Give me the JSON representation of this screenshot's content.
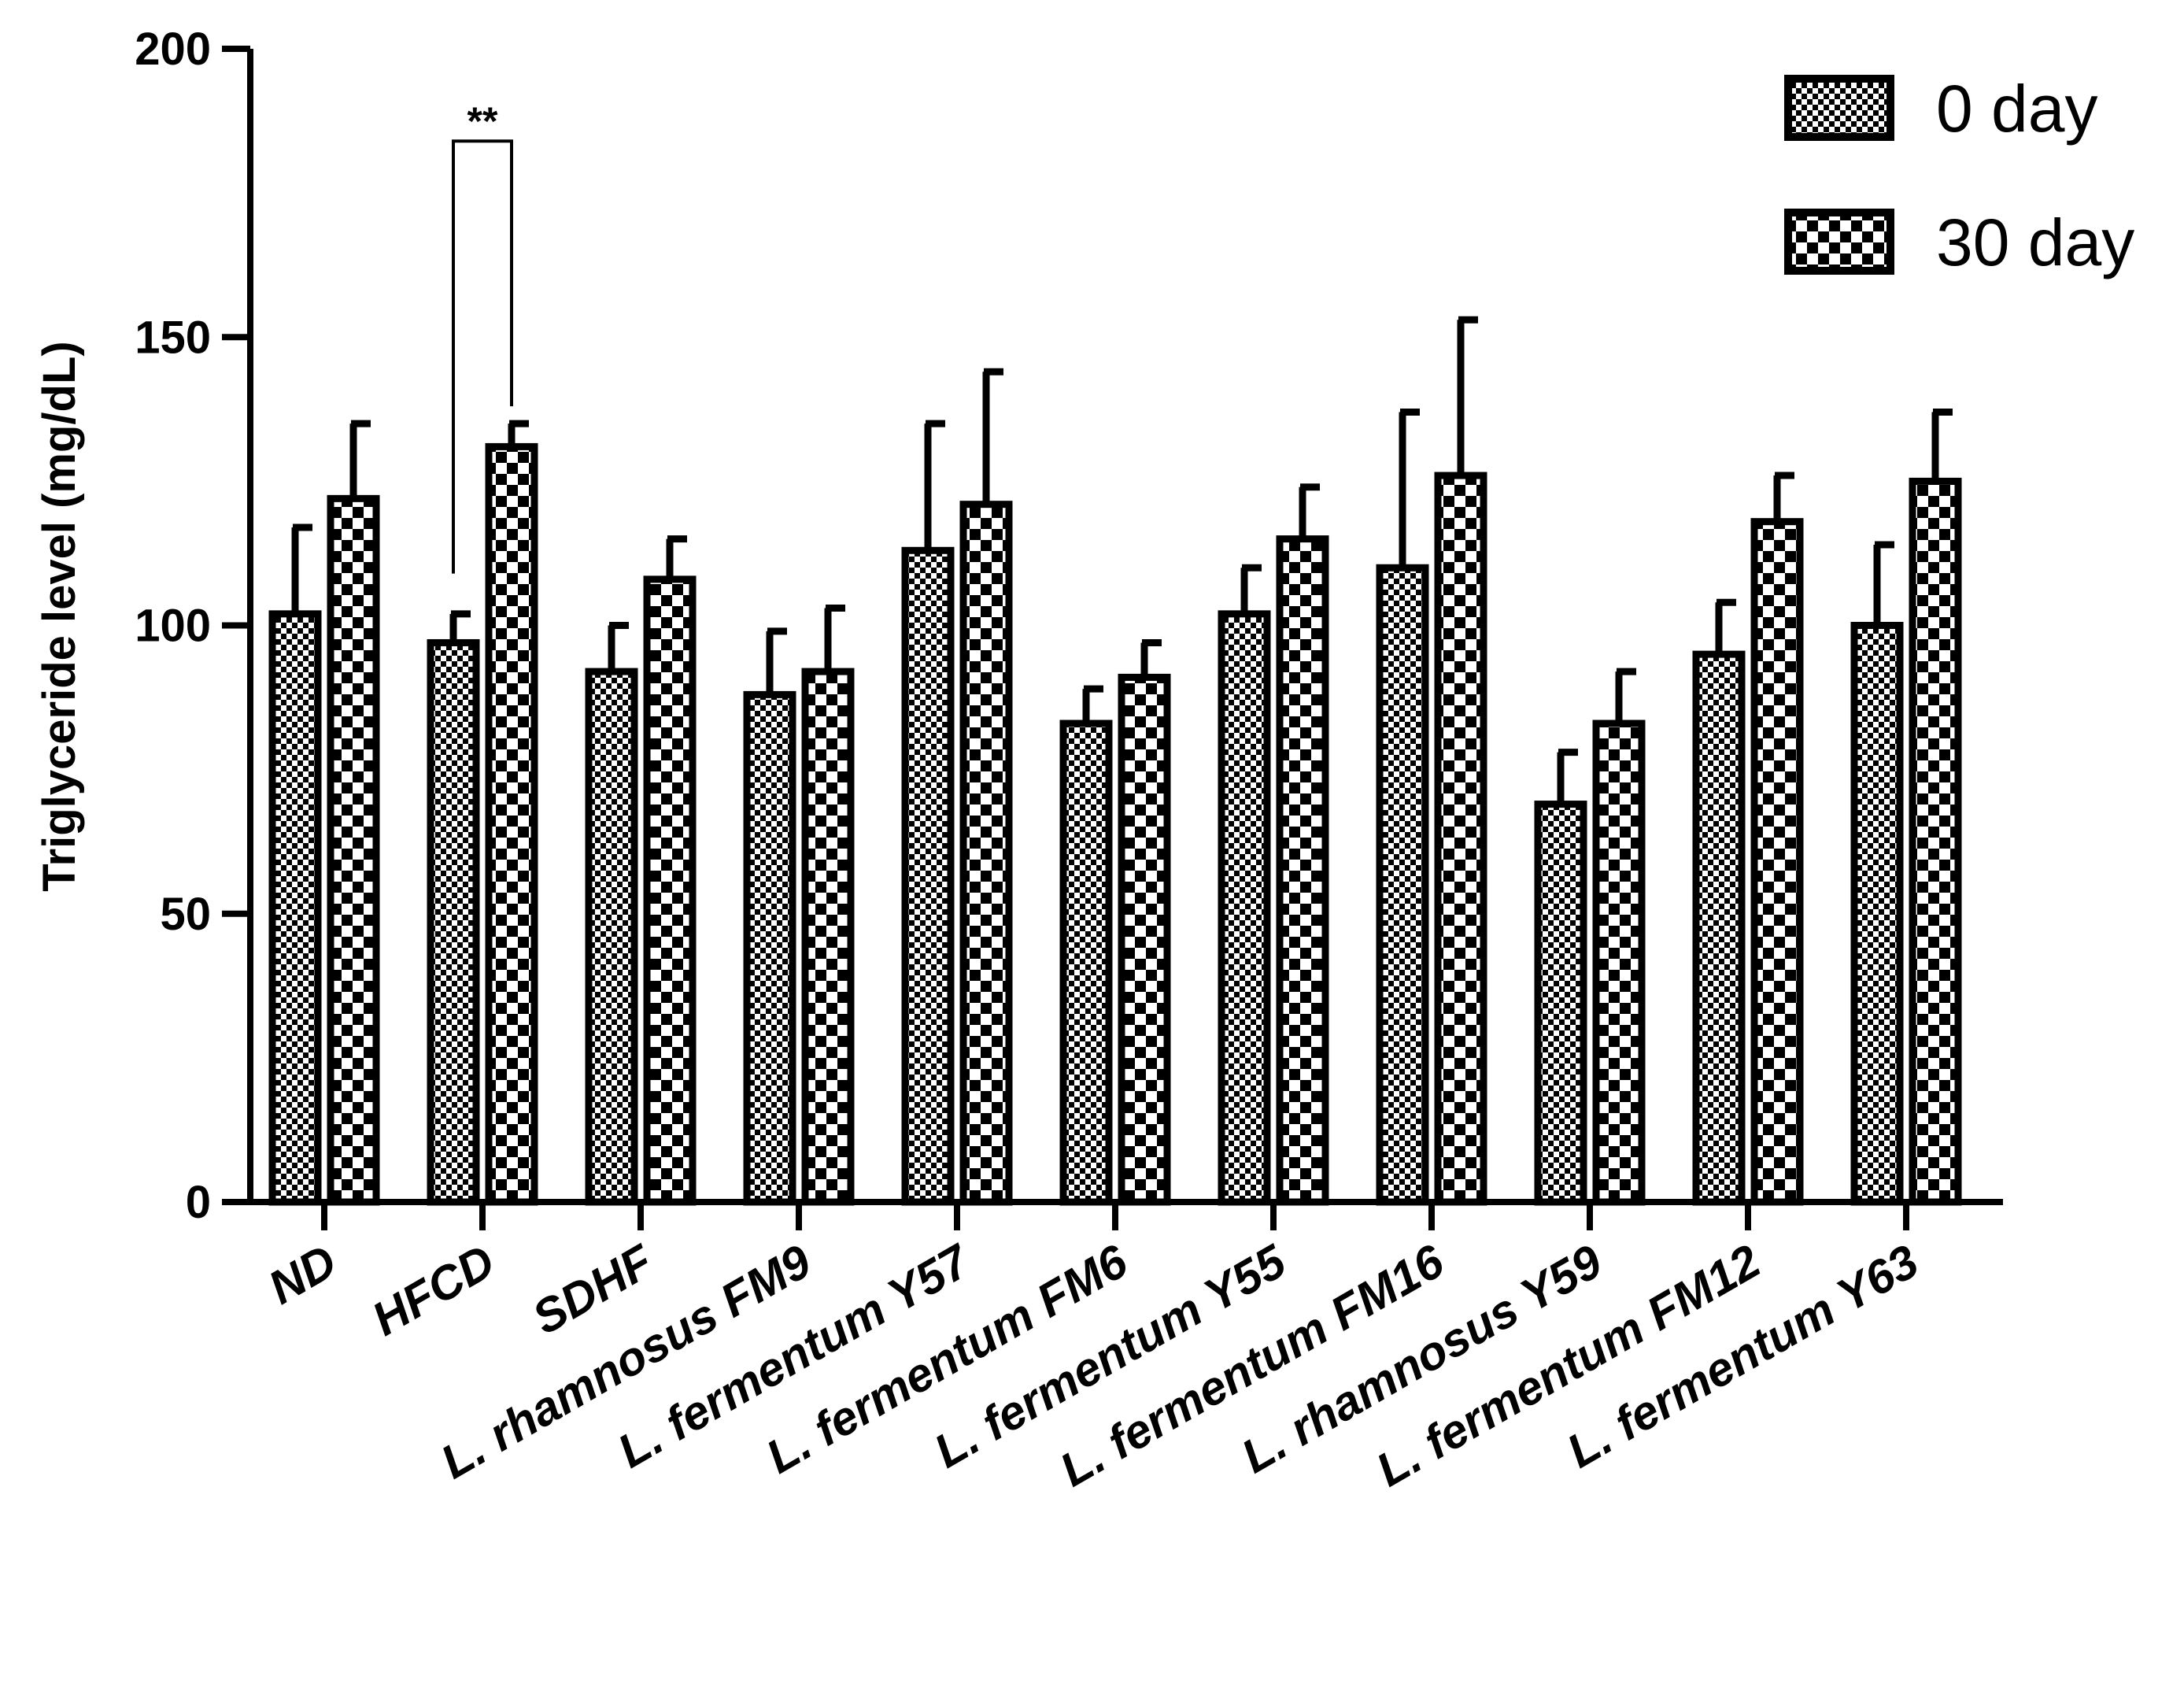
{
  "chart_data": {
    "type": "bar",
    "title": "",
    "xlabel": "",
    "ylabel": "Triglyceride level (mg/dL)",
    "ylim": [
      0,
      200
    ],
    "yticks": [
      0,
      50,
      100,
      150,
      200
    ],
    "ytick_labels": [
      "0",
      "50",
      "100",
      "150",
      "200"
    ],
    "categories": [
      "ND",
      "HFCD",
      "SDHF",
      "L. rhamnosus FM9",
      "L. fermentum Y57",
      "L. fermentum FM6",
      "L. fermentum Y55",
      "L. fermentum FM16",
      "L. rhamnosus Y59",
      "L. fermentum FM12",
      "L. fermentum Y63"
    ],
    "series": [
      {
        "name": "0 day",
        "pattern": "fine-checker",
        "values": [
          102,
          97,
          92,
          88,
          113,
          83,
          102,
          110,
          69,
          95,
          100
        ],
        "errors": [
          15,
          5,
          8,
          11,
          22,
          6,
          8,
          27,
          9,
          9,
          14
        ]
      },
      {
        "name": "30 day",
        "pattern": "coarse-checker",
        "values": [
          122,
          131,
          108,
          92,
          121,
          91,
          115,
          126,
          83,
          118,
          125
        ],
        "errors": [
          13,
          4,
          7,
          11,
          23,
          6,
          9,
          27,
          9,
          8,
          12
        ]
      }
    ],
    "legend": {
      "position": "top-right",
      "entries": [
        "0 day",
        "30 day"
      ]
    },
    "annotations": [
      {
        "type": "significance-bracket",
        "text": "**",
        "category": "HFCD",
        "between": [
          "0 day",
          "30 day"
        ],
        "y": 184
      }
    ],
    "grid": false
  }
}
